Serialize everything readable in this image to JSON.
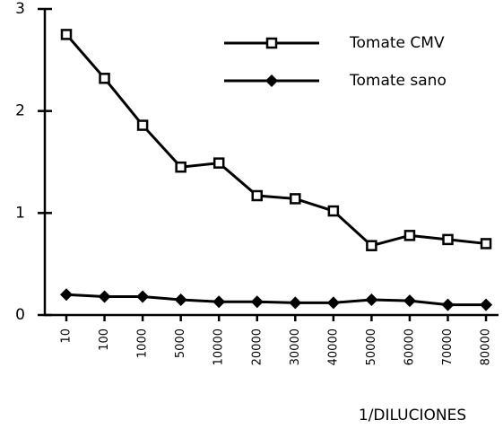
{
  "chart_data": {
    "type": "line",
    "xlabel": "1/DILUCIONES",
    "categories": [
      "10",
      "100",
      "1000",
      "5000",
      "10000",
      "20000",
      "30000",
      "40000",
      "50000",
      "60000",
      "70000",
      "80000"
    ],
    "series": [
      {
        "name": "Tomate CMV",
        "color": "#000000",
        "marker": "square",
        "values": [
          2.75,
          2.32,
          1.86,
          1.45,
          1.49,
          1.17,
          1.14,
          1.02,
          0.68,
          0.78,
          0.74,
          0.7
        ]
      },
      {
        "name": "Tomate sano",
        "color": "#000000",
        "marker": "diamond",
        "values": [
          0.2,
          0.18,
          0.18,
          0.15,
          0.13,
          0.13,
          0.12,
          0.12,
          0.15,
          0.14,
          0.1,
          0.1
        ]
      }
    ],
    "ylim": [
      0,
      3
    ],
    "yticks": [
      0,
      1,
      2,
      3
    ],
    "grid": false,
    "legend": "upper right"
  }
}
